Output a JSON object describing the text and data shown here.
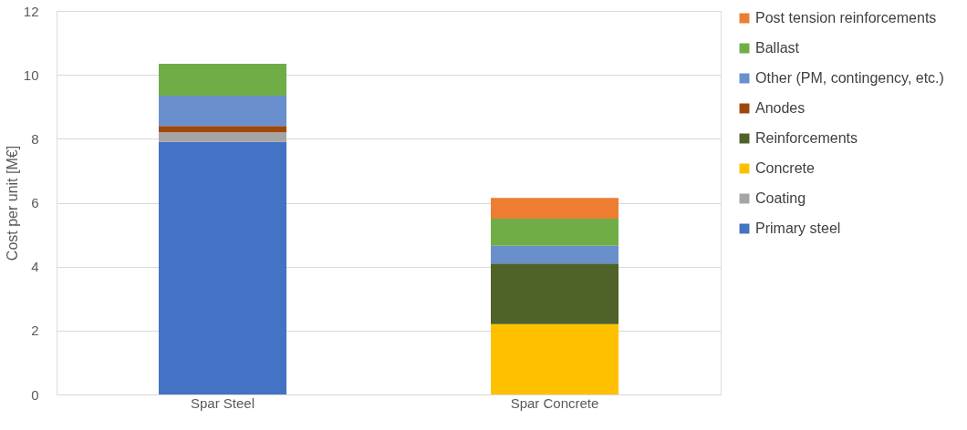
{
  "chart_data": {
    "type": "bar",
    "stacked": true,
    "ylabel": "Cost per unit [M€]",
    "categories": [
      "Spar Steel",
      "Spar Concrete"
    ],
    "series": [
      {
        "name": "Primary steel",
        "color": "#4472c4",
        "values": [
          7.9,
          null
        ]
      },
      {
        "name": "Coating",
        "color": "#a5a5a5",
        "values": [
          0.3,
          null
        ]
      },
      {
        "name": "Concrete",
        "color": "#ffc000",
        "values": [
          null,
          2.2
        ]
      },
      {
        "name": "Reinforcements",
        "color": "#4f6228",
        "values": [
          null,
          1.9
        ]
      },
      {
        "name": "Anodes",
        "color": "#9e480e",
        "values": [
          0.2,
          null
        ]
      },
      {
        "name": "Other (PM, contingency, etc.)",
        "color": "#6a8fcd",
        "values": [
          0.95,
          0.55
        ]
      },
      {
        "name": "Ballast",
        "color": "#70ad47",
        "values": [
          1.0,
          0.85
        ]
      },
      {
        "name": "Post tension reinforcements",
        "color": "#ed7d31",
        "values": [
          null,
          0.65
        ]
      }
    ],
    "ylim": [
      0,
      12
    ],
    "yticks": [
      0,
      2,
      4,
      6,
      8,
      10,
      12
    ],
    "grid": "y",
    "legend": "right"
  }
}
